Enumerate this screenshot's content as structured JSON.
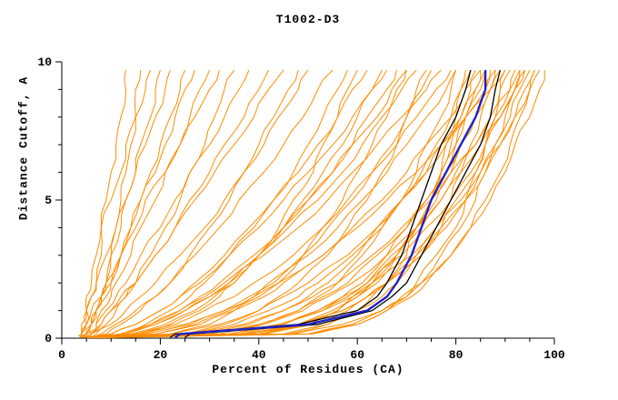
{
  "title": "T1002-D3",
  "chart_data": {
    "type": "line",
    "title": "T1002-D3",
    "xlabel": "Percent of Residues (CA)",
    "ylabel": "Distance Cutoff, A",
    "xlim": [
      0,
      100
    ],
    "ylim": [
      0,
      10
    ],
    "x_major_ticks": [
      0,
      20,
      40,
      60,
      80,
      100
    ],
    "x_minor_step": 5,
    "y_major_ticks": [
      0,
      5,
      10
    ],
    "y_minor_step": 1,
    "grid": false,
    "legend_position": "none",
    "colors": {
      "models": "#ff8c00",
      "highlight": "#000000",
      "reference": "#2121c8",
      "axis": "#000000"
    },
    "y_samples": [
      0.02,
      0.15,
      0.5,
      1,
      1.5,
      2,
      3,
      4,
      5,
      6,
      7,
      8,
      9,
      9.7
    ],
    "series": [
      {
        "name": "black-model-1",
        "color": "#000000",
        "width": 1.3,
        "x": [
          22,
          23,
          48,
          60,
          64,
          66,
          69,
          71,
          73,
          75,
          77,
          80,
          82,
          83
        ]
      },
      {
        "name": "black-model-2",
        "color": "#000000",
        "width": 1.3,
        "x": [
          25,
          26,
          52,
          63,
          67,
          70,
          73,
          76,
          79,
          82,
          85,
          87,
          88,
          89
        ]
      },
      {
        "name": "blue-reference-model",
        "color": "#2121c8",
        "width": 2.4,
        "x": [
          23,
          24,
          50,
          62,
          66,
          68,
          71,
          73,
          75,
          78,
          81,
          84,
          86,
          86
        ]
      }
    ],
    "orange_models": {
      "name": "server-model-curves",
      "color": "#ff8c00",
      "width": 1,
      "curves": [
        [
          6,
          51,
          60,
          66,
          70,
          72,
          76,
          80,
          82,
          84,
          86,
          88,
          89,
          90
        ],
        [
          7,
          38,
          49,
          57,
          62,
          66,
          73,
          77,
          82,
          85,
          88,
          91,
          93,
          95
        ],
        [
          6,
          40,
          50,
          56,
          60,
          64,
          68,
          72,
          75,
          78,
          80,
          82,
          84,
          85
        ],
        [
          8,
          34,
          45,
          53,
          59,
          63,
          71,
          76,
          81,
          85,
          89,
          92,
          95,
          97
        ],
        [
          6,
          45,
          54,
          60,
          65,
          68,
          72,
          76,
          79,
          81,
          83,
          85,
          87,
          88
        ],
        [
          7,
          41,
          51,
          58,
          62,
          66,
          72,
          77,
          80,
          84,
          86,
          88,
          91,
          92
        ],
        [
          5,
          46,
          54,
          60,
          63,
          66,
          70,
          72,
          75,
          77,
          78,
          80,
          81,
          82
        ],
        [
          8,
          34,
          44,
          53,
          58,
          62,
          69,
          74,
          79,
          83,
          86,
          89,
          92,
          94
        ],
        [
          6,
          25,
          35,
          42,
          48,
          52,
          59,
          64,
          69,
          74,
          77,
          81,
          84,
          86
        ],
        [
          7,
          47,
          57,
          65,
          70,
          73,
          79,
          83,
          87,
          90,
          92,
          95,
          97,
          98
        ],
        [
          6,
          32,
          41,
          48,
          52,
          56,
          61,
          65,
          69,
          72,
          74,
          77,
          79,
          80
        ],
        [
          9,
          50,
          59,
          65,
          69,
          73,
          77,
          81,
          84,
          86,
          88,
          90,
          92,
          93
        ],
        [
          6,
          30,
          40,
          48,
          53,
          58,
          64,
          70,
          74,
          78,
          81,
          84,
          87,
          89
        ],
        [
          5,
          37,
          48,
          57,
          62,
          66,
          73,
          78,
          82,
          86,
          89,
          92,
          94,
          96
        ],
        [
          8,
          41,
          50,
          56,
          60,
          63,
          68,
          72,
          75,
          77,
          79,
          81,
          83,
          84
        ],
        [
          6,
          19,
          27,
          34,
          39,
          43,
          49,
          54,
          59,
          63,
          67,
          70,
          73,
          75
        ],
        [
          5,
          13,
          19,
          25,
          30,
          34,
          40,
          45,
          50,
          55,
          59,
          62,
          66,
          68
        ],
        [
          6,
          17,
          26,
          33,
          38,
          42,
          50,
          56,
          61,
          66,
          70,
          74,
          78,
          80
        ],
        [
          5,
          10,
          15,
          20,
          24,
          27,
          33,
          38,
          43,
          48,
          52,
          56,
          59,
          62
        ],
        [
          6,
          13,
          19,
          25,
          30,
          34,
          40,
          46,
          52,
          57,
          61,
          65,
          69,
          72
        ],
        [
          5,
          12,
          17,
          22,
          26,
          29,
          34,
          39,
          43,
          47,
          50,
          53,
          56,
          58
        ],
        [
          6,
          12,
          18,
          24,
          29,
          33,
          41,
          48,
          54,
          59,
          64,
          69,
          74,
          77
        ],
        [
          5,
          14,
          21,
          27,
          31,
          35,
          40,
          45,
          49,
          53,
          57,
          60,
          63,
          65
        ],
        [
          7,
          22,
          30,
          35,
          40,
          44,
          49,
          53,
          57,
          60,
          63,
          66,
          68,
          70
        ],
        [
          5,
          5,
          6,
          7,
          8,
          9,
          10,
          12,
          13,
          15,
          16,
          18,
          19,
          20
        ],
        [
          5,
          6,
          6,
          7,
          8,
          9,
          10,
          11,
          12,
          13,
          14,
          15,
          15,
          16
        ],
        [
          4,
          5,
          6,
          7,
          9,
          10,
          12,
          14,
          16,
          18,
          20,
          22,
          24,
          25
        ],
        [
          5,
          6,
          7,
          8,
          10,
          11,
          14,
          16,
          19,
          21,
          24,
          26,
          28,
          30
        ],
        [
          5,
          7,
          9,
          11,
          13,
          15,
          18,
          21,
          24,
          26,
          29,
          31,
          33,
          35
        ],
        [
          4,
          5,
          8,
          10,
          13,
          15,
          19,
          23,
          26,
          30,
          33,
          37,
          40,
          42
        ],
        [
          5,
          9,
          12,
          16,
          19,
          22,
          26,
          30,
          34,
          37,
          40,
          43,
          46,
          48
        ],
        [
          4,
          4,
          5,
          5,
          6,
          7,
          9,
          11,
          13,
          15,
          17,
          19,
          21,
          22
        ],
        [
          5,
          5,
          6,
          7,
          8,
          10,
          12,
          14,
          16,
          19,
          21,
          23,
          25,
          27
        ],
        [
          4,
          4,
          4,
          5,
          5,
          6,
          7,
          8,
          10,
          12,
          13,
          15,
          17,
          18
        ],
        [
          5,
          6,
          7,
          9,
          11,
          13,
          16,
          20,
          23,
          26,
          30,
          33,
          36,
          38
        ],
        [
          4,
          6,
          10,
          13,
          16,
          19,
          24,
          29,
          33,
          37,
          41,
          44,
          48,
          50
        ],
        [
          5,
          6,
          8,
          10,
          12,
          15,
          19,
          23,
          27,
          31,
          35,
          39,
          42,
          45
        ],
        [
          4,
          4,
          5,
          6,
          8,
          9,
          12,
          15,
          17,
          21,
          24,
          27,
          30,
          32
        ],
        [
          7,
          34,
          45,
          52,
          57,
          62,
          67,
          73,
          77,
          80,
          84,
          87,
          89,
          91
        ],
        [
          6,
          38,
          48,
          55,
          59,
          63,
          68,
          72,
          76,
          79,
          81,
          84,
          86,
          87
        ],
        [
          8,
          50,
          60,
          66,
          71,
          74,
          79,
          83,
          86,
          89,
          91,
          93,
          95,
          96
        ],
        [
          6,
          28,
          38,
          45,
          50,
          54,
          60,
          65,
          69,
          73,
          76,
          79,
          81,
          83
        ],
        [
          7,
          22,
          32,
          40,
          45,
          50,
          58,
          64,
          69,
          74,
          78,
          82,
          86,
          88
        ],
        [
          5,
          26,
          37,
          45,
          51,
          56,
          63,
          69,
          75,
          79,
          84,
          87,
          91,
          93
        ],
        [
          6,
          15,
          23,
          29,
          35,
          39,
          47,
          53,
          58,
          63,
          68,
          72,
          76,
          79
        ],
        [
          7,
          19,
          28,
          35,
          41,
          45,
          53,
          59,
          65,
          70,
          74,
          79,
          82,
          85
        ],
        [
          6,
          16,
          25,
          33,
          39,
          44,
          53,
          60,
          66,
          72,
          77,
          82,
          87,
          90
        ],
        [
          5,
          25,
          33,
          40,
          44,
          48,
          54,
          58,
          62,
          65,
          68,
          70,
          72,
          74
        ],
        [
          8,
          36,
          45,
          52,
          57,
          61,
          66,
          70,
          74,
          77,
          80,
          82,
          85,
          86
        ],
        [
          5,
          8,
          11,
          15,
          19,
          22,
          27,
          32,
          36,
          41,
          45,
          49,
          52,
          55
        ],
        [
          6,
          16,
          22,
          28,
          32,
          35,
          40,
          44,
          47,
          51,
          53,
          56,
          58,
          60
        ],
        [
          7,
          30,
          41,
          49,
          54,
          59,
          66,
          72,
          77,
          81,
          85,
          89,
          92,
          94
        ],
        [
          5,
          12,
          18,
          24,
          28,
          32,
          39,
          45,
          50,
          55,
          59,
          64,
          67,
          70
        ],
        [
          6,
          10,
          15,
          20,
          24,
          28,
          34,
          40,
          45,
          50,
          55,
          59,
          63,
          66
        ],
        [
          4,
          4,
          5,
          5,
          6,
          7,
          8,
          8,
          9,
          10,
          11,
          12,
          13,
          13
        ]
      ]
    }
  }
}
